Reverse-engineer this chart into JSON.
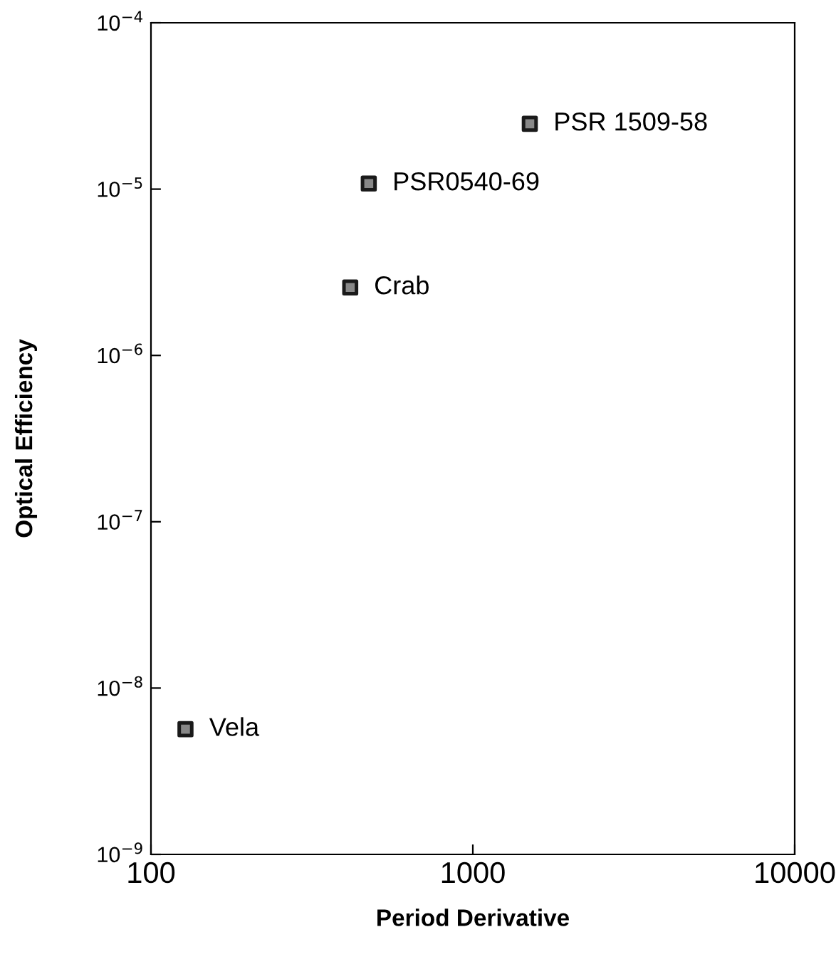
{
  "chart_data": {
    "type": "scatter",
    "xlabel": "Period Derivative",
    "ylabel": "Optical Efficiency",
    "x": [
      1503,
      475,
      416,
      128
    ],
    "series": [
      {
        "color": "#1a1a1a",
        "values": [
          2.47e-05,
          1.08e-05,
          2.56e-06,
          5.66e-09
        ]
      }
    ],
    "annotations": [
      {
        "text": "PSR 1509-58",
        "x": 1503,
        "y": 2.47e-05
      },
      {
        "text": "PSR0540-69",
        "x": 475,
        "y": 1.08e-05
      },
      {
        "text": "Crab",
        "x": 416,
        "y": 2.56e-06
      },
      {
        "text": "Vela",
        "x": 128,
        "y": 5.66e-09
      }
    ],
    "log": "xy",
    "marker": "square",
    "grid": false,
    "legend": false,
    "xlim": [
      100,
      10000
    ],
    "xticks": [
      100,
      1000,
      10000
    ],
    "ylim": [
      1e-09,
      0.0001
    ],
    "yticks": [
      {
        "value": 1e-09,
        "label": "10$^{−9}$"
      },
      {
        "value": 1e-08,
        "label": "10$^{−8}$"
      },
      {
        "value": 1e-07,
        "label": "10$^{−7}$"
      },
      {
        "value": 1e-06,
        "label": "10$^{−6}$"
      },
      {
        "value": 1e-05,
        "label": "10$^{−5}$"
      },
      {
        "value": 0.0001,
        "label": "10$^{−4}$"
      }
    ]
  }
}
